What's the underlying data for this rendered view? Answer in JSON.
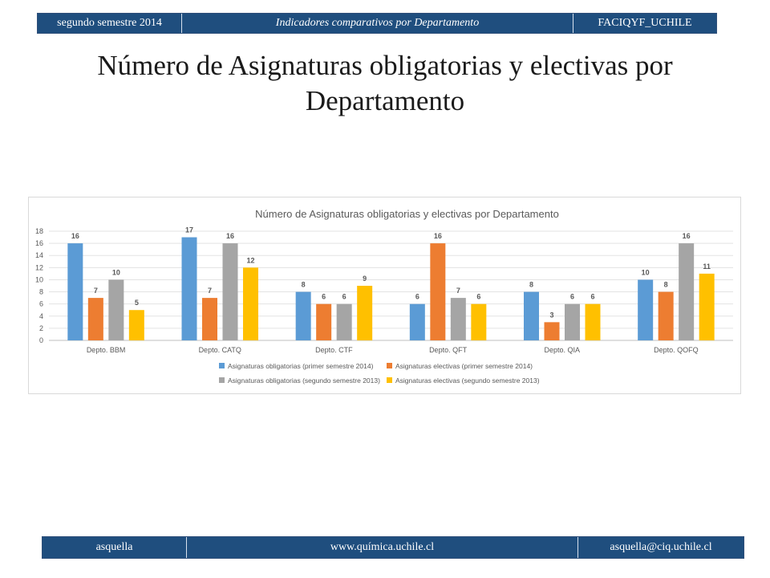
{
  "header": {
    "left": "segundo semestre 2014",
    "center": "Indicadores comparativos por Departamento",
    "right": "FACIQYF_UCHILE"
  },
  "slide_title": "Número de Asignaturas obligatorias y electivas por Departamento",
  "footer": {
    "left": "asquella",
    "center": "www.química.uchile.cl",
    "right": "asquella@ciq.uchile.cl"
  },
  "chart_data": {
    "type": "bar",
    "title": "Número de Asignaturas obligatorias y electivas por Departamento",
    "categories": [
      "Depto. BBM",
      "Depto. CATQ",
      "Depto. CTF",
      "Depto. QFT",
      "Depto. QIA",
      "Depto. QOFQ"
    ],
    "series": [
      {
        "name": "Asignaturas obligatorias (primer semestre 2014)",
        "color": "#5b9bd5",
        "values": [
          16,
          17,
          8,
          6,
          8,
          10
        ]
      },
      {
        "name": "Asignaturas electivas (primer semestre 2014)",
        "color": "#ed7d31",
        "values": [
          7,
          7,
          6,
          16,
          3,
          8
        ]
      },
      {
        "name": "Asignaturas obligatorias (segundo semestre 2013)",
        "color": "#a5a5a5",
        "values": [
          10,
          16,
          6,
          7,
          6,
          16
        ]
      },
      {
        "name": "Asignaturas electivas (segundo semestre 2013)",
        "color": "#ffc000",
        "values": [
          5,
          12,
          9,
          6,
          6,
          11
        ]
      }
    ],
    "ylim": [
      0,
      18
    ],
    "yticks": [
      0,
      2,
      4,
      6,
      8,
      10,
      12,
      14,
      16,
      18
    ],
    "grid": true,
    "data_labels": true,
    "legend_position": "bottom"
  }
}
